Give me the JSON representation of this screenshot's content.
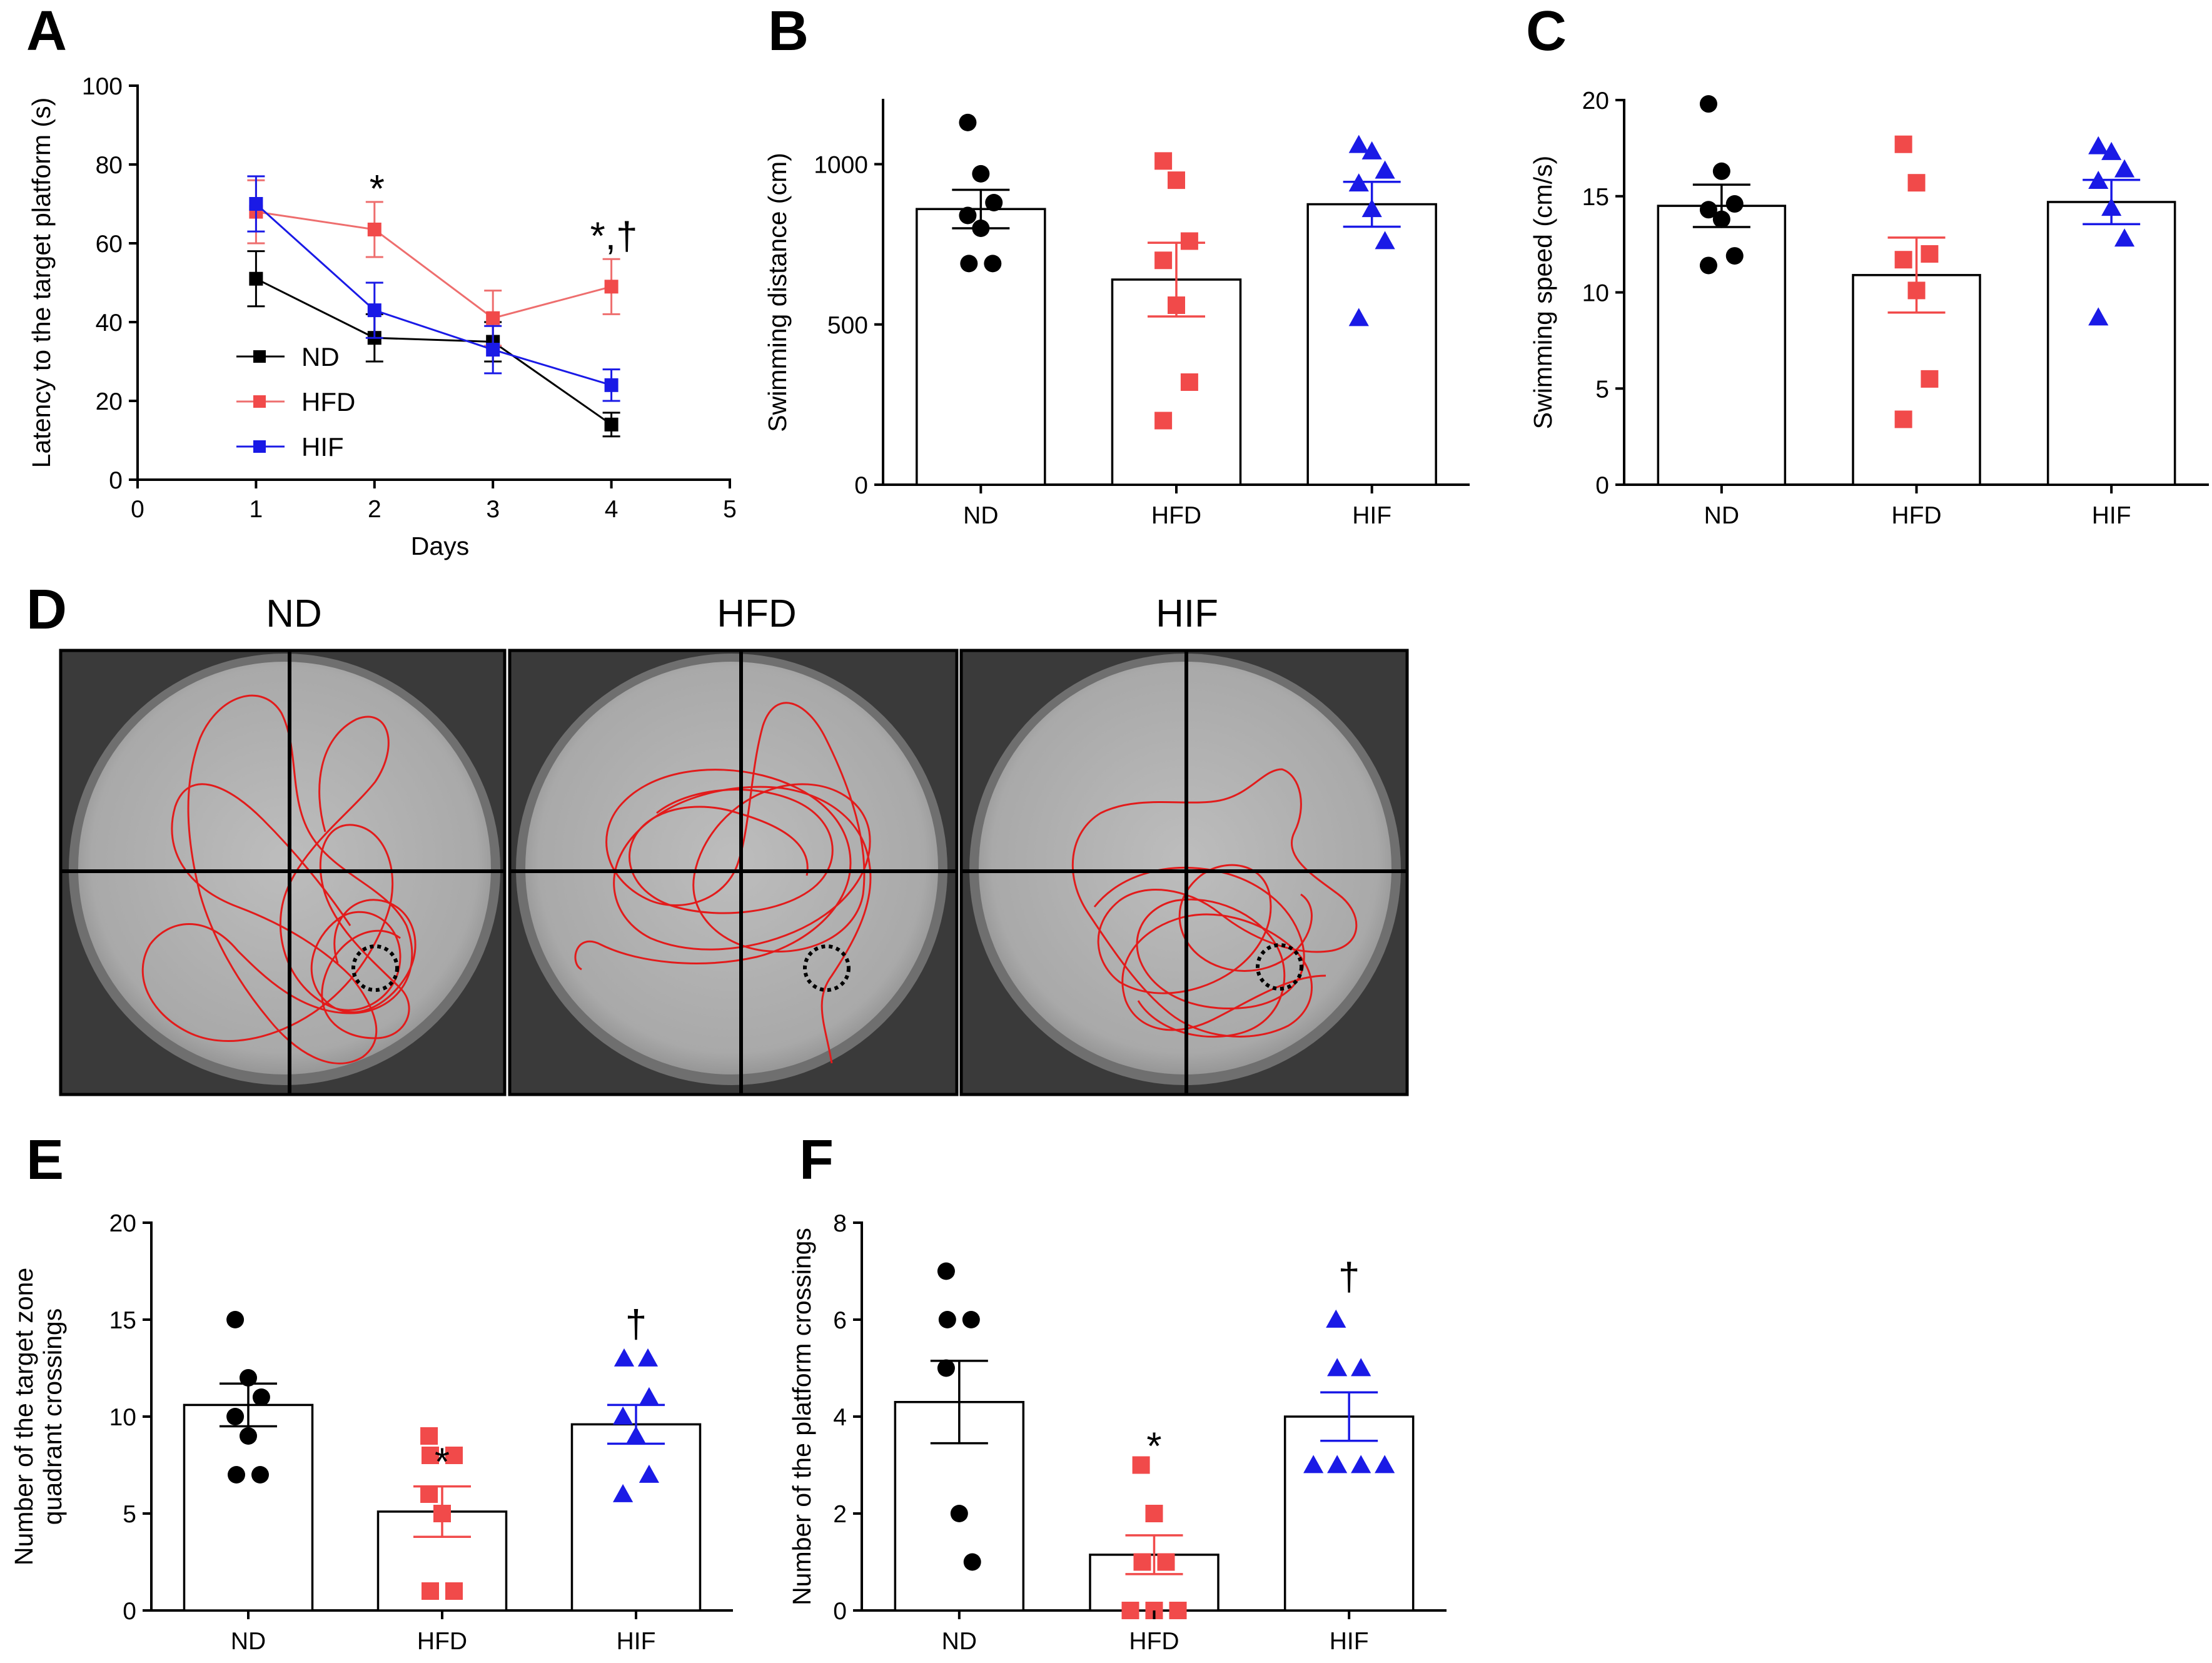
{
  "figure": {
    "panels": [
      "A",
      "B",
      "C",
      "D",
      "E",
      "F"
    ]
  },
  "colors": {
    "ND": "#000000",
    "HFD": "#f14a4a",
    "HIF": "#1a1ae6",
    "HFD_line": "#ee6e6e",
    "track": "#e21b1b"
  },
  "chart_data": [
    {
      "id": "A",
      "type": "line",
      "xlabel": "Days",
      "ylabel": "Latency to the target platform (s)",
      "xlim": [
        0,
        5
      ],
      "ylim": [
        0,
        100
      ],
      "xticks": [
        "0",
        "1",
        "2",
        "3",
        "4",
        "5"
      ],
      "yticks": [
        "0",
        "20",
        "40",
        "60",
        "80",
        "100"
      ],
      "legend": [
        "ND",
        "HFD",
        "HIF"
      ],
      "series": [
        {
          "name": "ND",
          "marker": "square",
          "x": [
            1,
            2,
            3,
            4
          ],
          "values": [
            51,
            36,
            35,
            14
          ],
          "err": [
            7,
            6,
            5,
            3
          ]
        },
        {
          "name": "HFD",
          "marker": "square",
          "x": [
            1,
            2,
            3,
            4
          ],
          "values": [
            68,
            63.5,
            41,
            49
          ],
          "err": [
            8,
            7,
            7,
            7
          ]
        },
        {
          "name": "HIF",
          "marker": "square",
          "x": [
            1,
            2,
            3,
            4
          ],
          "values": [
            70,
            43,
            33,
            24
          ],
          "err": [
            7,
            7,
            6,
            4
          ]
        }
      ],
      "annotations": [
        {
          "x": 2,
          "y": 74,
          "text": "*"
        },
        {
          "x": 4,
          "y": 62,
          "text": "*,†"
        }
      ]
    },
    {
      "id": "B",
      "type": "bar",
      "ylabel": "Swimming distance (cm)",
      "categories": [
        "ND",
        "HFD",
        "HIF"
      ],
      "ylim": [
        0,
        1200
      ],
      "yticks": [
        "0",
        "500",
        "1000"
      ],
      "values": [
        860,
        640,
        875
      ],
      "sem": [
        60,
        115,
        70
      ],
      "points": [
        [
          1130,
          970,
          880,
          840,
          800,
          690,
          690
        ],
        [
          1010,
          950,
          760,
          700,
          560,
          320,
          200
        ],
        [
          1060,
          1040,
          980,
          940,
          860,
          760,
          520
        ]
      ]
    },
    {
      "id": "C",
      "type": "bar",
      "ylabel": "Swimming speed (cm/s)",
      "categories": [
        "ND",
        "HFD",
        "HIF"
      ],
      "ylim": [
        0,
        20
      ],
      "yticks": [
        "0",
        "5",
        "10",
        "15",
        "20"
      ],
      "values": [
        14.5,
        10.9,
        14.7
      ],
      "sem": [
        1.1,
        1.95,
        1.15
      ],
      "points": [
        [
          19.8,
          16.3,
          14.6,
          14.3,
          13.8,
          11.9,
          11.4
        ],
        [
          17.7,
          15.7,
          12.0,
          11.7,
          10.1,
          5.5,
          3.4
        ],
        [
          17.6,
          17.3,
          16.4,
          15.8,
          14.4,
          12.8,
          8.7
        ]
      ]
    },
    {
      "id": "E",
      "type": "bar",
      "ylabel": "Number of the target zone quadrant crossings",
      "ylabel_lines": [
        "Number of the target zone",
        "quadrant crossings"
      ],
      "categories": [
        "ND",
        "HFD",
        "HIF"
      ],
      "ylim": [
        0,
        20
      ],
      "yticks": [
        "0",
        "5",
        "10",
        "15",
        "20"
      ],
      "values": [
        10.6,
        5.1,
        9.6
      ],
      "sem": [
        1.1,
        1.3,
        1.0
      ],
      "points": [
        [
          15,
          12,
          11,
          10,
          9,
          7,
          7
        ],
        [
          9,
          8,
          8,
          6,
          5,
          1,
          1
        ],
        [
          13,
          13,
          11,
          10,
          9,
          7,
          6
        ]
      ],
      "annotations": [
        {
          "cat": 1,
          "y": 7.7,
          "text": "*"
        },
        {
          "cat": 2,
          "y": 14.8,
          "text": "†"
        }
      ]
    },
    {
      "id": "F",
      "type": "bar",
      "ylabel": "Number of the platform crossings",
      "categories": [
        "ND",
        "HFD",
        "HIF"
      ],
      "ylim": [
        0,
        8
      ],
      "yticks": [
        "0",
        "2",
        "4",
        "6",
        "8"
      ],
      "values": [
        4.3,
        1.15,
        4.0
      ],
      "sem": [
        0.85,
        0.4,
        0.5
      ],
      "points": [
        [
          7,
          6,
          6,
          5,
          2,
          1
        ],
        [
          3,
          2,
          1,
          1,
          0,
          0,
          0
        ],
        [
          6,
          5,
          5,
          3,
          3,
          3,
          3
        ]
      ],
      "annotations": [
        {
          "cat": 1,
          "y": 3.4,
          "text": "*"
        },
        {
          "cat": 2,
          "y": 6.9,
          "text": "†"
        }
      ]
    }
  ],
  "tracks": {
    "titles": [
      "ND",
      "HFD",
      "HIF"
    ]
  }
}
